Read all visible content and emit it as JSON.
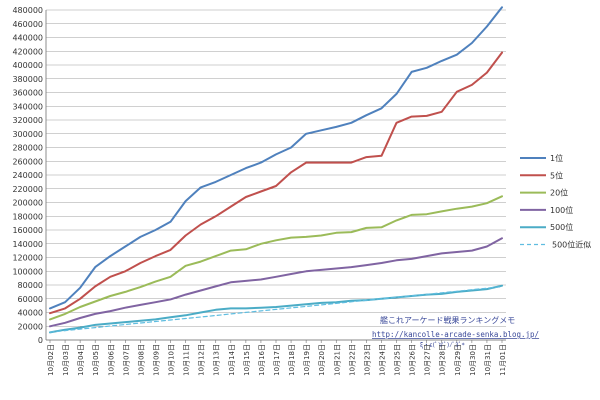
{
  "chart_data": {
    "type": "line",
    "title": "",
    "xlabel": "",
    "ylabel": "",
    "ylim": [
      0,
      480000
    ],
    "ytick_step": 20000,
    "grid": true,
    "legend_position": "right",
    "categories": [
      "10月02日",
      "10月03日",
      "10月04日",
      "10月05日",
      "10月06日",
      "10月07日",
      "10月08日",
      "10月09日",
      "10月10日",
      "10月11日",
      "10月12日",
      "10月13日",
      "10月14日",
      "10月15日",
      "10月16日",
      "10月17日",
      "10月18日",
      "10月19日",
      "10月20日",
      "10月21日",
      "10月22日",
      "10月23日",
      "10月24日",
      "10月25日",
      "10月26日",
      "10月27日",
      "10月28日",
      "10月29日",
      "10月30日",
      "10月31日",
      "11月01日"
    ],
    "series": [
      {
        "name": "1位",
        "color": "#4f81bd",
        "dash": false,
        "values": [
          46000,
          55000,
          76000,
          106000,
          122000,
          136000,
          150000,
          160000,
          172000,
          202000,
          222000,
          230000,
          240000,
          250000,
          258000,
          270000,
          280000,
          300000,
          305000,
          310000,
          316000,
          327000,
          337000,
          358000,
          390000,
          396000,
          406000,
          415000,
          432000,
          456000,
          484000
        ]
      },
      {
        "name": "5位",
        "color": "#c0504d",
        "dash": false,
        "values": [
          39000,
          46000,
          60000,
          78000,
          92000,
          100000,
          112000,
          122000,
          131000,
          152000,
          168000,
          180000,
          194000,
          208000,
          216000,
          224000,
          244000,
          258000,
          258000,
          258000,
          258000,
          266000,
          268000,
          316000,
          325000,
          326000,
          332000,
          361000,
          371000,
          389000,
          418000
        ]
      },
      {
        "name": "20位",
        "color": "#9bbb59",
        "dash": false,
        "values": [
          30000,
          38000,
          48000,
          56000,
          64000,
          70000,
          77000,
          85000,
          92000,
          108000,
          114000,
          122000,
          130000,
          132000,
          140000,
          145000,
          149000,
          150000,
          152000,
          156000,
          157000,
          163000,
          164000,
          174000,
          182000,
          183000,
          187000,
          191000,
          194000,
          199000,
          209000
        ]
      },
      {
        "name": "100位",
        "color": "#8064a2",
        "dash": false,
        "values": [
          20000,
          25000,
          32000,
          38000,
          42000,
          47000,
          51000,
          55000,
          59000,
          66000,
          72000,
          78000,
          84000,
          86000,
          88000,
          92000,
          96000,
          100000,
          102000,
          104000,
          106000,
          109000,
          112000,
          116000,
          118000,
          122000,
          126000,
          128000,
          130000,
          136000,
          148000
        ]
      },
      {
        "name": "500位",
        "color": "#4bacc6",
        "dash": false,
        "values": [
          11000,
          15000,
          18000,
          22000,
          24000,
          26000,
          28000,
          30000,
          33000,
          36000,
          40000,
          44000,
          46000,
          46000,
          47000,
          48000,
          50000,
          52000,
          54000,
          55000,
          57000,
          58000,
          60000,
          62000,
          64000,
          66000,
          67000,
          70000,
          72000,
          74000,
          79000
        ]
      },
      {
        "name": "500位近似",
        "color": "#5fbde0",
        "dash": true,
        "values": [
          11500,
          13700,
          15900,
          18100,
          20300,
          22500,
          24700,
          26900,
          29100,
          31300,
          33500,
          35700,
          37900,
          40100,
          42300,
          44500,
          46700,
          48900,
          51100,
          53300,
          55500,
          57700,
          59900,
          62100,
          64300,
          66500,
          68700,
          70900,
          73100,
          75300,
          77500
        ]
      }
    ]
  },
  "watermark": {
    "line1": "艦これアーケード戦果ランキングメモ",
    "line2": "http://kancolle-arcade-senka.blog.jp/",
    "line3": "ξ・ε(ﾟ∀ﾟ)ﾉﾟ3ﾟ*"
  }
}
